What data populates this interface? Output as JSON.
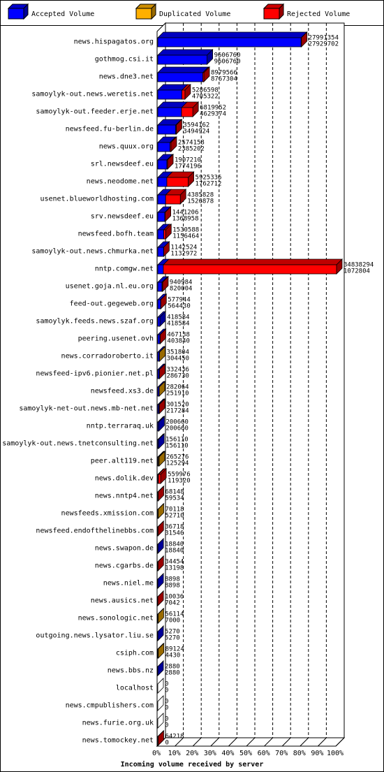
{
  "legend": [
    {
      "label": "Accepted Volume",
      "color": "#0000ff"
    },
    {
      "label": "Duplicated Volume",
      "color": "#ffb000"
    },
    {
      "label": "Rejected Volume",
      "color": "#ff0000"
    }
  ],
  "chart_data": {
    "type": "bar",
    "orientation": "horizontal",
    "xlabel": "Incoming volume received by server",
    "x_ticks": [
      "0%",
      "10%",
      "20%",
      "30%",
      "40%",
      "50%",
      "60%",
      "70%",
      "80%",
      "90%",
      "100%"
    ],
    "xlim": [
      0,
      100
    ],
    "max_value": 34838294,
    "grid": true,
    "series_names": [
      "Accepted Volume",
      "Duplicated Volume",
      "Rejected Volume"
    ],
    "rows": [
      {
        "name": "news.hispagatos.org",
        "total": 27991354,
        "accepted": 27929702,
        "dup_color": "#ff0000"
      },
      {
        "name": "gothmog.csi.it",
        "total": 9606760,
        "accepted": 9606760,
        "dup_color": "#ff0000"
      },
      {
        "name": "news.dne3.net",
        "total": 8979566,
        "accepted": 8767304,
        "dup_color": "#ff0000"
      },
      {
        "name": "samoylyk-out.news.weretis.net",
        "total": 5286598,
        "accepted": 4705322,
        "dup_color": "#ff0000"
      },
      {
        "name": "samoylyk-out.feeder.erje.net",
        "total": 6819952,
        "accepted": 4629374,
        "dup_color": "#ff0000"
      },
      {
        "name": "newsfeed.fu-berlin.de",
        "total": 3594162,
        "accepted": 3494924,
        "dup_color": "#ff0000"
      },
      {
        "name": "news.quux.org",
        "total": 2574158,
        "accepted": 2385202,
        "dup_color": "#ff0000"
      },
      {
        "name": "srl.newsdeef.eu",
        "total": 1907210,
        "accepted": 1774196,
        "dup_color": "#ff0000"
      },
      {
        "name": "news.neodome.net",
        "total": 5925336,
        "accepted": 1762712,
        "dup_color": "#ff0000"
      },
      {
        "name": "usenet.blueworldhosting.com",
        "total": 4385828,
        "accepted": 1526878,
        "dup_color": "#ff0000"
      },
      {
        "name": "srv.newsdeef.eu",
        "total": 1441206,
        "accepted": 1368958,
        "dup_color": "#ff0000"
      },
      {
        "name": "newsfeed.bofh.team",
        "total": 1530588,
        "accepted": 1156464,
        "dup_color": "#ff0000"
      },
      {
        "name": "samoylyk-out.news.chmurka.net",
        "total": 1142524,
        "accepted": 1132972,
        "dup_color": "#ff0000"
      },
      {
        "name": "nntp.comgw.net",
        "total": 34838294,
        "accepted": 1072804,
        "dup_color": "#ff0000"
      },
      {
        "name": "usenet.goja.nl.eu.org",
        "total": 940984,
        "accepted": 820004,
        "dup_color": "#ff0000"
      },
      {
        "name": "feed-out.gegeweb.org",
        "total": 577944,
        "accepted": 564430,
        "dup_color": "#ff0000"
      },
      {
        "name": "samoylyk.feeds.news.szaf.org",
        "total": 418584,
        "accepted": 418584,
        "dup_color": "#ff0000"
      },
      {
        "name": "peering.usenet.ovh",
        "total": 467138,
        "accepted": 403840,
        "dup_color": "#ff0000"
      },
      {
        "name": "news.corradoroberto.it",
        "total": 351804,
        "accepted": 304450,
        "dup_color": "#ffb000"
      },
      {
        "name": "newsfeed-ipv6.pionier.net.pl",
        "total": 332436,
        "accepted": 286730,
        "dup_color": "#ff0000"
      },
      {
        "name": "newsfeed.xs3.de",
        "total": 282064,
        "accepted": 251910,
        "dup_color": "#ffb000"
      },
      {
        "name": "samoylyk-net-out.news.mb-net.net",
        "total": 301520,
        "accepted": 217284,
        "dup_color": "#ff0000"
      },
      {
        "name": "nntp.terraraq.uk",
        "total": 200660,
        "accepted": 200660,
        "dup_color": "#ff0000"
      },
      {
        "name": "samoylyk-out.news.tnetconsulting.net",
        "total": 156110,
        "accepted": 156110,
        "dup_color": "#ff0000"
      },
      {
        "name": "peer.alt119.net",
        "total": 265276,
        "accepted": 125294,
        "dup_color": "#ffb000"
      },
      {
        "name": "news.dolik.dev",
        "total": 559976,
        "accepted": 119320,
        "dup_color": "#ff0000"
      },
      {
        "name": "news.nntp4.net",
        "total": 68148,
        "accepted": 59534,
        "dup_color": "#ff0000"
      },
      {
        "name": "newsfeeds.xmission.com",
        "total": 70118,
        "accepted": 52710,
        "dup_color": "#ffb000"
      },
      {
        "name": "newsfeed.endofthelinebbs.com",
        "total": 36718,
        "accepted": 31546,
        "dup_color": "#ff0000"
      },
      {
        "name": "news.swapon.de",
        "total": 18840,
        "accepted": 18840,
        "dup_color": "#ff0000"
      },
      {
        "name": "news.cgarbs.de",
        "total": 34454,
        "accepted": 13198,
        "dup_color": "#ff0000"
      },
      {
        "name": "news.niel.me",
        "total": 8898,
        "accepted": 8898,
        "dup_color": "#ff0000"
      },
      {
        "name": "news.ausics.net",
        "total": 10036,
        "accepted": 7042,
        "dup_color": "#ff0000"
      },
      {
        "name": "news.sonologic.net",
        "total": 56114,
        "accepted": 7000,
        "dup_color": "#ffb000"
      },
      {
        "name": "outgoing.news.lysator.liu.se",
        "total": 5270,
        "accepted": 5270,
        "dup_color": "#ff0000"
      },
      {
        "name": "csiph.com",
        "total": 89124,
        "accepted": 4430,
        "dup_color": "#ffb000"
      },
      {
        "name": "news.bbs.nz",
        "total": 2880,
        "accepted": 2880,
        "dup_color": "#ff0000"
      },
      {
        "name": "localhost",
        "total": 0,
        "accepted": 0,
        "dup_color": "#ff0000"
      },
      {
        "name": "news.cmpublishers.com",
        "total": 0,
        "accepted": 0,
        "dup_color": "#ff0000"
      },
      {
        "name": "news.furie.org.uk",
        "total": 0,
        "accepted": 0,
        "dup_color": "#ff0000"
      },
      {
        "name": "news.tomockey.net",
        "total": 64218,
        "accepted": 0,
        "dup_color": "#ff0000"
      }
    ]
  }
}
